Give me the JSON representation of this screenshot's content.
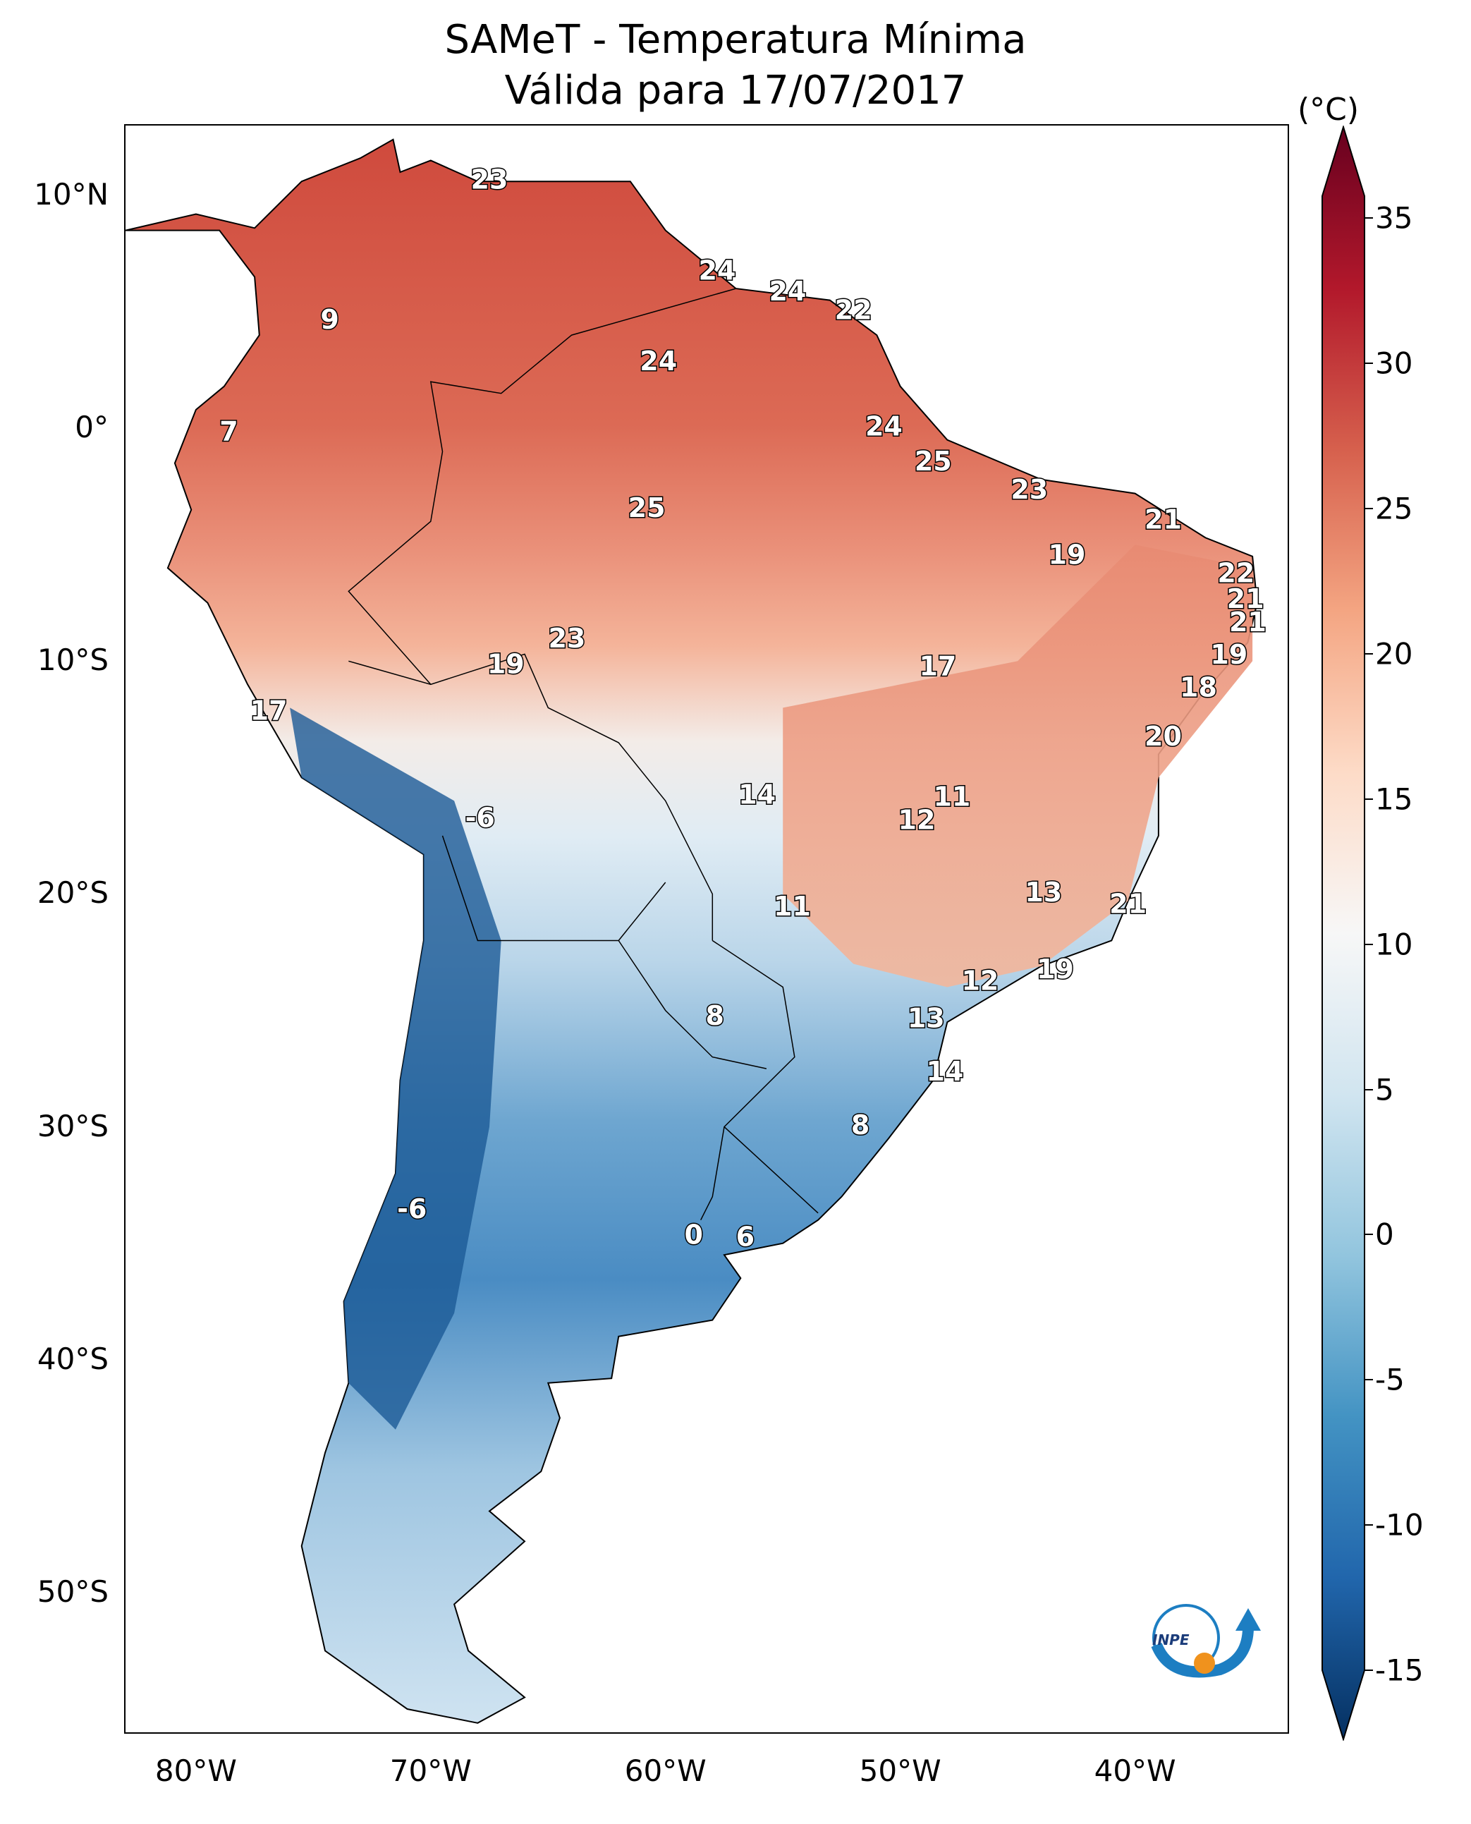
{
  "title": "SAMeT - Temperatura Mínima",
  "subtitle": "Válida para 17/07/2017",
  "unit_label": "(°C)",
  "lat_ticks": [
    {
      "label": "10°N",
      "value": 10
    },
    {
      "label": "0°",
      "value": 0
    },
    {
      "label": "10°S",
      "value": -10
    },
    {
      "label": "20°S",
      "value": -20
    },
    {
      "label": "30°S",
      "value": -30
    },
    {
      "label": "40°S",
      "value": -40
    },
    {
      "label": "50°S",
      "value": -50
    }
  ],
  "lon_ticks": [
    {
      "label": "80°W",
      "value": -80
    },
    {
      "label": "70°W",
      "value": -70
    },
    {
      "label": "60°W",
      "value": -60
    },
    {
      "label": "50°W",
      "value": -50
    },
    {
      "label": "40°W",
      "value": -40
    }
  ],
  "colorbar": {
    "min": -15,
    "max": 35,
    "ticks": [
      {
        "label": "35",
        "value": 35
      },
      {
        "label": "30",
        "value": 30
      },
      {
        "label": "25",
        "value": 25
      },
      {
        "label": "20",
        "value": 20
      },
      {
        "label": "15",
        "value": 15
      },
      {
        "label": "10",
        "value": 10
      },
      {
        "label": "5",
        "value": 5
      },
      {
        "label": "0",
        "value": 0
      },
      {
        "label": "-5",
        "value": -5
      },
      {
        "label": "-10",
        "value": -10
      },
      {
        "label": "-15",
        "value": -15
      }
    ],
    "colors": [
      "#053061",
      "#2166ac",
      "#4393c3",
      "#92c5de",
      "#d1e5f0",
      "#f7f7f7",
      "#fddbc7",
      "#f4a582",
      "#d6604d",
      "#b2182b",
      "#67001f"
    ]
  },
  "map": {
    "lon_range": [
      -83,
      -33.5
    ],
    "lat_range": [
      -56,
      13
    ],
    "labels": [
      {
        "text": "23",
        "lon": -67.5,
        "lat": 10.6
      },
      {
        "text": "24",
        "lon": -57.8,
        "lat": 6.7
      },
      {
        "text": "24",
        "lon": -54.8,
        "lat": 5.8
      },
      {
        "text": "22",
        "lon": -52.0,
        "lat": 5.0
      },
      {
        "text": "9",
        "lon": -74.3,
        "lat": 4.6
      },
      {
        "text": "24",
        "lon": -60.3,
        "lat": 2.8
      },
      {
        "text": "7",
        "lon": -78.6,
        "lat": -0.2
      },
      {
        "text": "24",
        "lon": -50.7,
        "lat": 0.0
      },
      {
        "text": "25",
        "lon": -48.6,
        "lat": -1.5
      },
      {
        "text": "23",
        "lon": -44.5,
        "lat": -2.7
      },
      {
        "text": "25",
        "lon": -60.8,
        "lat": -3.5
      },
      {
        "text": "21",
        "lon": -38.8,
        "lat": -4.0
      },
      {
        "text": "19",
        "lon": -42.9,
        "lat": -5.5
      },
      {
        "text": "22",
        "lon": -35.7,
        "lat": -6.3
      },
      {
        "text": "21",
        "lon": -35.3,
        "lat": -7.4
      },
      {
        "text": "21",
        "lon": -35.2,
        "lat": -8.4
      },
      {
        "text": "23",
        "lon": -64.2,
        "lat": -9.1
      },
      {
        "text": "19",
        "lon": -36.0,
        "lat": -9.8
      },
      {
        "text": "19",
        "lon": -66.8,
        "lat": -10.2
      },
      {
        "text": "17",
        "lon": -48.4,
        "lat": -10.3
      },
      {
        "text": "18",
        "lon": -37.3,
        "lat": -11.2
      },
      {
        "text": "17",
        "lon": -76.9,
        "lat": -12.2
      },
      {
        "text": "20",
        "lon": -38.8,
        "lat": -13.3
      },
      {
        "text": "14",
        "lon": -56.1,
        "lat": -15.8
      },
      {
        "text": "11",
        "lon": -47.8,
        "lat": -15.9
      },
      {
        "text": "12",
        "lon": -49.3,
        "lat": -16.9
      },
      {
        "text": "-6",
        "lon": -67.9,
        "lat": -16.8
      },
      {
        "text": "13",
        "lon": -43.9,
        "lat": -20.0
      },
      {
        "text": "21",
        "lon": -40.3,
        "lat": -20.5
      },
      {
        "text": "11",
        "lon": -54.6,
        "lat": -20.6
      },
      {
        "text": "19",
        "lon": -43.4,
        "lat": -23.3
      },
      {
        "text": "12",
        "lon": -46.6,
        "lat": -23.8
      },
      {
        "text": "8",
        "lon": -57.9,
        "lat": -25.3
      },
      {
        "text": "13",
        "lon": -48.9,
        "lat": -25.4
      },
      {
        "text": "14",
        "lon": -48.1,
        "lat": -27.7
      },
      {
        "text": "8",
        "lon": -51.7,
        "lat": -30.0
      },
      {
        "text": "-6",
        "lon": -70.8,
        "lat": -33.6
      },
      {
        "text": "0",
        "lon": -58.8,
        "lat": -34.7
      },
      {
        "text": "6",
        "lon": -56.6,
        "lat": -34.8
      }
    ]
  },
  "logo_text": "INPE"
}
